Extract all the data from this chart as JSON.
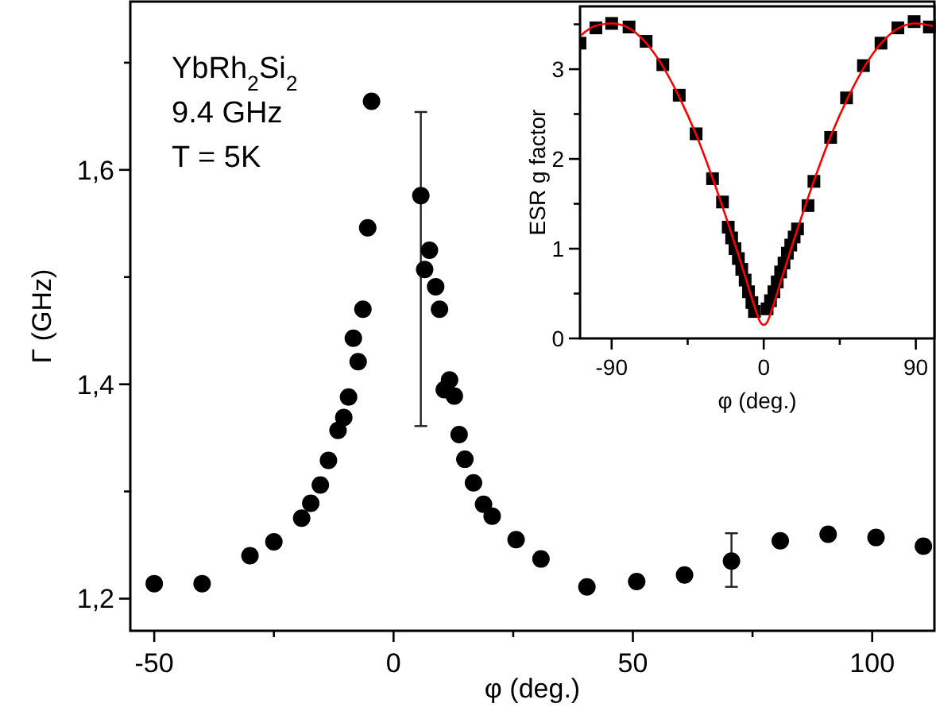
{
  "chart_data": [
    {
      "type": "scatter",
      "xlabel": "φ (deg.)",
      "ylabel": "Γ (GHz)",
      "marker": "circle",
      "color": "#000000",
      "annotations": [
        "YbRh$_{2}$Si$_{2}$",
        "9.4 GHz",
        "T = 5K"
      ],
      "x": [
        -50,
        -40,
        -30,
        -25,
        -19.2,
        -17.3,
        -15.3,
        -13.6,
        -11.6,
        -10.4,
        -9.4,
        -7.4,
        -8.4,
        -6.4,
        -5.4,
        -4.6,
        5.7,
        7.5,
        6.5,
        8.8,
        9.6,
        11.7,
        10.6,
        12.7,
        13.7,
        14.9,
        16.7,
        18.8,
        20.6,
        25.6,
        30.8,
        40.4,
        50.8,
        60.8,
        70.6,
        80.8,
        90.8,
        100.8,
        110.7
      ],
      "values": [
        1.214,
        1.214,
        1.24,
        1.253,
        1.275,
        1.289,
        1.306,
        1.329,
        1.357,
        1.369,
        1.388,
        1.421,
        1.443,
        1.47,
        1.546,
        1.664,
        1.576,
        1.525,
        1.507,
        1.491,
        1.47,
        1.404,
        1.395,
        1.389,
        1.353,
        1.33,
        1.308,
        1.288,
        1.277,
        1.255,
        1.237,
        1.211,
        1.216,
        1.222,
        1.235,
        1.254,
        1.26,
        1.257,
        1.249
      ],
      "errors": [
        null,
        null,
        null,
        null,
        null,
        null,
        null,
        null,
        null,
        null,
        null,
        null,
        null,
        null,
        null,
        null,
        [
          1.361,
          1.654
        ],
        null,
        null,
        null,
        null,
        null,
        null,
        null,
        null,
        null,
        null,
        null,
        null,
        null,
        null,
        null,
        null,
        null,
        [
          1.211,
          1.261
        ],
        null,
        null,
        null,
        null
      ],
      "xlim": [
        -55,
        113
      ],
      "xticks": [
        -50,
        {
          "value": -25,
          "label": null
        },
        0,
        {
          "value": 25,
          "label": null
        },
        50,
        {
          "value": 75,
          "label": null
        },
        100
      ],
      "ylim": [
        1.17,
        1.757
      ],
      "yticks": [
        {
          "value": 1.2,
          "label": "1,2"
        },
        {
          "value": 1.3,
          "label": null
        },
        {
          "value": 1.4,
          "label": "1,4"
        },
        {
          "value": 1.5,
          "label": null
        },
        {
          "value": 1.6,
          "label": "1,6"
        },
        {
          "value": 1.7,
          "label": null
        }
      ]
    },
    {
      "type": "scatter",
      "xlabel": "φ (deg.)",
      "ylabel": "ESR g factor",
      "xlim": [
        -108.7,
        101
      ],
      "xticks": [
        -90,
        {
          "value": -45,
          "label": null
        },
        0,
        {
          "value": 45,
          "label": null
        },
        90
      ],
      "ylim": [
        0,
        3.7
      ],
      "yticks": [
        0,
        {
          "value": 0.5,
          "label": null
        },
        1,
        {
          "value": 1.5,
          "label": null
        },
        2,
        {
          "value": 2.5,
          "label": null
        },
        3,
        {
          "value": 3.5,
          "label": null
        }
      ],
      "series": [
        {
          "marker": "square",
          "color": "#000000",
          "x": [
            -108.7,
            -99.3,
            -90,
            -79.7,
            -69.6,
            -59.7,
            -50,
            -40,
            -30.3,
            -24.4,
            -21,
            -19,
            -17,
            -15,
            -13,
            -11,
            -9,
            -7,
            -5.5,
            2,
            4,
            6,
            8,
            10,
            12,
            14,
            16,
            18,
            20,
            26.2,
            29.7,
            39.6,
            49,
            59,
            69.4,
            79.4,
            89,
            98
          ],
          "values": [
            3.29,
            3.46,
            3.51,
            3.47,
            3.31,
            3.05,
            2.71,
            2.28,
            1.78,
            1.52,
            1.24,
            1.12,
            1.0,
            0.89,
            0.77,
            0.65,
            0.52,
            0.4,
            0.3,
            0.33,
            0.42,
            0.52,
            0.63,
            0.74,
            0.84,
            0.95,
            1.04,
            1.13,
            1.22,
            1.48,
            1.75,
            2.24,
            2.68,
            3.04,
            3.29,
            3.46,
            3.53,
            3.47
          ]
        },
        {
          "type": "line",
          "marker": "none",
          "color": "#ff0000",
          "x": [
            -108,
            -100,
            -90,
            -80,
            -70,
            -60,
            -50,
            -40,
            -30,
            -20,
            -15,
            -10,
            -5,
            -2,
            0,
            2,
            5,
            10,
            15,
            20,
            30,
            40,
            50,
            60,
            70,
            80,
            90,
            100
          ],
          "values": [
            3.38,
            3.48,
            3.51,
            3.46,
            3.3,
            3.04,
            2.69,
            2.27,
            1.77,
            1.22,
            0.93,
            0.63,
            0.33,
            0.18,
            0.15,
            0.18,
            0.33,
            0.63,
            0.93,
            1.22,
            1.77,
            2.27,
            2.69,
            3.04,
            3.3,
            3.46,
            3.51,
            3.48
          ]
        }
      ]
    }
  ]
}
